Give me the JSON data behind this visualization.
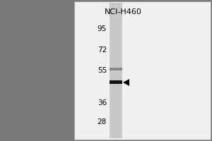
{
  "title": "NCI-H460",
  "mw_markers": [
    95,
    72,
    55,
    36,
    28
  ],
  "band1_mw": 47,
  "band2_mw": 56,
  "sidebar_color": "#7a7a7a",
  "gel_bg_color": "#f0f0f0",
  "lane_color": "#c8c8c8",
  "band1_color": "#111111",
  "band2_color": "#555555",
  "title_fontsize": 8,
  "marker_fontsize": 7.5,
  "log_min": 1.38,
  "log_max": 2.04
}
